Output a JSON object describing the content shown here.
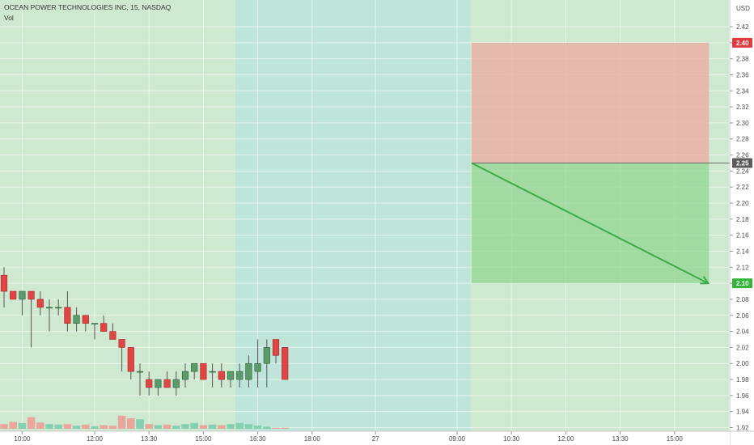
{
  "chart_data": {
    "type": "candlestick",
    "title": "OCEAN POWER TECHNOLOGIES INC, 15, NASDAQ",
    "subtitle": "Vol",
    "currency": "USD",
    "ylim": [
      1.915,
      2.44
    ],
    "y_ticks": [
      "2.42",
      "2.40",
      "2.38",
      "2.36",
      "2.34",
      "2.32",
      "2.30",
      "2.28",
      "2.26",
      "2.24",
      "2.22",
      "2.20",
      "2.18",
      "2.16",
      "2.14",
      "2.12",
      "2.10",
      "2.08",
      "2.06",
      "2.04",
      "2.02",
      "2.00",
      "1.98",
      "1.96",
      "1.94",
      "1.92"
    ],
    "x_ticks": [
      {
        "label": "10:00",
        "bar": 2
      },
      {
        "label": "12:00",
        "bar": 10
      },
      {
        "label": "13:30",
        "bar": 16
      },
      {
        "label": "15:00",
        "bar": 22
      },
      {
        "label": "16:30",
        "bar": 28
      },
      {
        "label": "18:00",
        "bar": 34
      },
      {
        "label": "27",
        "bar": 41
      },
      {
        "label": "09:00",
        "bar": 50
      },
      {
        "label": "10:30",
        "bar": 56
      },
      {
        "label": "12:00",
        "bar": 62
      },
      {
        "label": "13:30",
        "bar": 68
      },
      {
        "label": "15:00",
        "bar": 74
      }
    ],
    "sessions": [
      {
        "start_bar": -0.5,
        "end_bar": 25.5,
        "kind": "regular"
      },
      {
        "start_bar": 25.5,
        "end_bar": 51.5,
        "kind": "extended"
      },
      {
        "start_bar": 51.5,
        "end_bar": 82.5,
        "kind": "regular"
      }
    ],
    "candles": [
      {
        "o": 2.11,
        "h": 2.12,
        "l": 2.07,
        "c": 2.09,
        "v": 90
      },
      {
        "o": 2.09,
        "h": 2.09,
        "l": 2.08,
        "c": 2.08,
        "v": 130
      },
      {
        "o": 2.08,
        "h": 2.09,
        "l": 2.06,
        "c": 2.09,
        "v": 110
      },
      {
        "o": 2.09,
        "h": 2.09,
        "l": 2.02,
        "c": 2.08,
        "v": 220
      },
      {
        "o": 2.08,
        "h": 2.09,
        "l": 2.06,
        "c": 2.07,
        "v": 120
      },
      {
        "o": 2.07,
        "h": 2.08,
        "l": 2.04,
        "c": 2.07,
        "v": 90
      },
      {
        "o": 2.07,
        "h": 2.08,
        "l": 2.06,
        "c": 2.07,
        "v": 80
      },
      {
        "o": 2.07,
        "h": 2.09,
        "l": 2.04,
        "c": 2.05,
        "v": 90
      },
      {
        "o": 2.05,
        "h": 2.07,
        "l": 2.04,
        "c": 2.06,
        "v": 60
      },
      {
        "o": 2.06,
        "h": 2.06,
        "l": 2.04,
        "c": 2.05,
        "v": 80
      },
      {
        "o": 2.05,
        "h": 2.05,
        "l": 2.03,
        "c": 2.05,
        "v": 50
      },
      {
        "o": 2.05,
        "h": 2.06,
        "l": 2.04,
        "c": 2.04,
        "v": 70
      },
      {
        "o": 2.04,
        "h": 2.05,
        "l": 2.03,
        "c": 2.03,
        "v": 60
      },
      {
        "o": 2.03,
        "h": 2.03,
        "l": 1.99,
        "c": 2.02,
        "v": 250
      },
      {
        "o": 2.02,
        "h": 2.02,
        "l": 1.98,
        "c": 1.99,
        "v": 200
      },
      {
        "o": 1.99,
        "h": 2.0,
        "l": 1.96,
        "c": 1.99,
        "v": 180
      },
      {
        "o": 1.98,
        "h": 1.99,
        "l": 1.96,
        "c": 1.97,
        "v": 90
      },
      {
        "o": 1.97,
        "h": 1.98,
        "l": 1.96,
        "c": 1.98,
        "v": 70
      },
      {
        "o": 1.98,
        "h": 1.99,
        "l": 1.97,
        "c": 1.97,
        "v": 80
      },
      {
        "o": 1.97,
        "h": 1.99,
        "l": 1.96,
        "c": 1.98,
        "v": 60
      },
      {
        "o": 1.98,
        "h": 2.0,
        "l": 1.97,
        "c": 1.99,
        "v": 90
      },
      {
        "o": 1.99,
        "h": 2.0,
        "l": 1.98,
        "c": 2.0,
        "v": 110
      },
      {
        "o": 2.0,
        "h": 2.0,
        "l": 1.98,
        "c": 1.98,
        "v": 70
      },
      {
        "o": 1.99,
        "h": 2.0,
        "l": 1.97,
        "c": 1.99,
        "v": 80
      },
      {
        "o": 1.99,
        "h": 2.0,
        "l": 1.97,
        "c": 1.98,
        "v": 70
      },
      {
        "o": 1.98,
        "h": 1.99,
        "l": 1.97,
        "c": 1.99,
        "v": 90
      },
      {
        "o": 1.98,
        "h": 2.0,
        "l": 1.97,
        "c": 1.99,
        "v": 110
      },
      {
        "o": 1.98,
        "h": 2.01,
        "l": 1.97,
        "c": 2.0,
        "v": 90
      },
      {
        "o": 1.99,
        "h": 2.03,
        "l": 1.97,
        "c": 2.0,
        "v": 60
      },
      {
        "o": 2.0,
        "h": 2.03,
        "l": 1.97,
        "c": 2.02,
        "v": 40
      },
      {
        "o": 2.03,
        "h": 2.03,
        "l": 2.0,
        "c": 2.01,
        "v": 20
      },
      {
        "o": 2.02,
        "h": 2.02,
        "l": 1.98,
        "c": 1.98,
        "v": 20
      }
    ],
    "legend_placement": "top-left",
    "grid": true
  },
  "overlay": {
    "stop_label": "2.40",
    "entry_label": "2.25",
    "target_label": "2.10",
    "stop_color": "#e03c3c",
    "entry_color": "#5b5b5b",
    "target_color": "#34b53a"
  },
  "colors": {
    "up": "#5b9b6b",
    "down": "#e04545",
    "wick": "#555555",
    "regular_session_bg": "#cfe9d0",
    "extended_session_bg": "#bfe5da"
  }
}
